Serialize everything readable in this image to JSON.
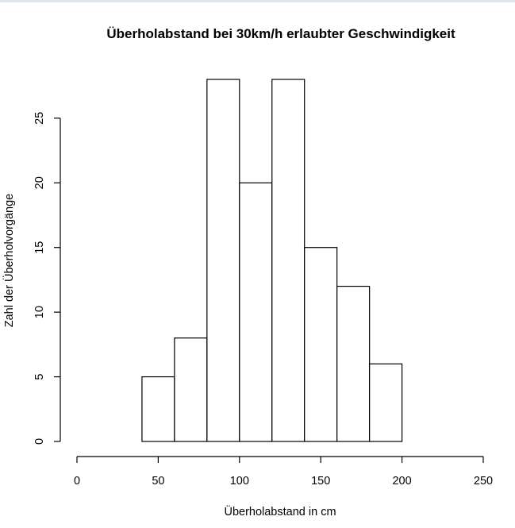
{
  "chart_data": {
    "type": "bar",
    "title": "Überholabstand bei 30km/h erlaubter Geschwindigkeit",
    "xlabel": "Überholabstand in cm",
    "ylabel": "Zahl der Überholvorgänge",
    "bins": [
      {
        "from": 40,
        "to": 60,
        "value": 5
      },
      {
        "from": 60,
        "to": 80,
        "value": 8
      },
      {
        "from": 80,
        "to": 100,
        "value": 28
      },
      {
        "from": 100,
        "to": 120,
        "value": 20
      },
      {
        "from": 120,
        "to": 140,
        "value": 28
      },
      {
        "from": 140,
        "to": 160,
        "value": 15
      },
      {
        "from": 160,
        "to": 180,
        "value": 12
      },
      {
        "from": 180,
        "to": 200,
        "value": 6
      }
    ],
    "xlim": [
      0,
      250
    ],
    "ylim": [
      0,
      28
    ],
    "xticks": [
      0,
      50,
      100,
      150,
      200,
      250
    ],
    "yticks": [
      0,
      5,
      10,
      15,
      20,
      25
    ],
    "grid": false,
    "legend": "none"
  }
}
